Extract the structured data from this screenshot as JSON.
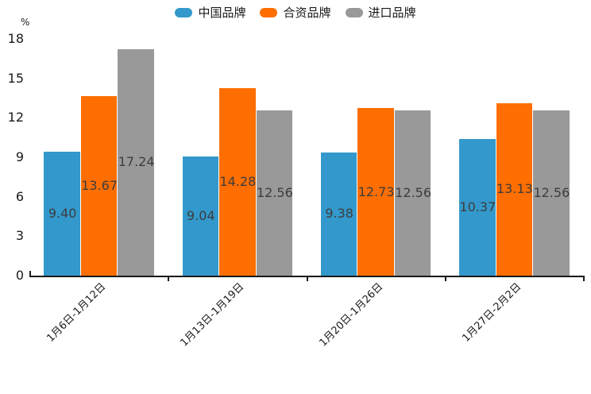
{
  "chart_data": {
    "type": "bar",
    "title": "",
    "unit_label": "%",
    "categories": [
      "1月6日-1月12日",
      "1月13日-1月19日",
      "1月20日-1月26日",
      "1月27日-2月2日"
    ],
    "series": [
      {
        "name": "中国品牌",
        "color": "#3399CC",
        "values": [
          9.4,
          9.04,
          9.38,
          10.37
        ]
      },
      {
        "name": "合资品牌",
        "color": "#FF6E00",
        "values": [
          13.67,
          14.28,
          12.73,
          13.13
        ]
      },
      {
        "name": "进口品牌",
        "color": "#999999",
        "values": [
          17.24,
          12.56,
          12.56,
          12.56
        ]
      }
    ],
    "yticks": [
      0,
      3,
      6,
      9,
      12,
      15,
      18
    ],
    "ylim": [
      0,
      18
    ],
    "legend_position": "top",
    "grid": false,
    "value_labels": true,
    "value_label_decimals": 2
  },
  "colors": {
    "axis": "#1a1a1a",
    "text": "#1a1a1a",
    "value_label_text": "#3d3d3d",
    "background": "#ffffff"
  }
}
